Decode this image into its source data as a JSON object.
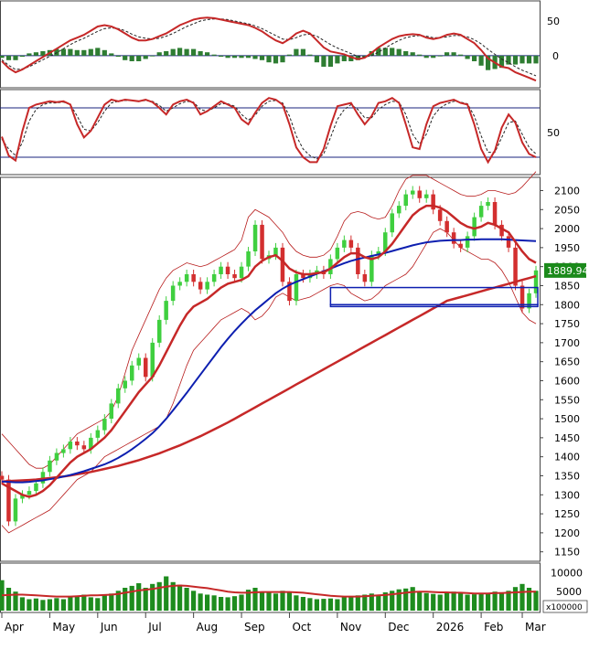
{
  "chart_data": [
    {
      "panel": "macd",
      "type": "line",
      "y_ticks": [
        "50",
        "0"
      ],
      "ylim": [
        -45,
        75
      ],
      "series": [],
      "macd": [
        -8,
        -18,
        -24,
        -20,
        -14,
        -8,
        -2,
        4,
        10,
        16,
        22,
        26,
        30,
        36,
        42,
        44,
        42,
        38,
        32,
        26,
        22,
        22,
        24,
        28,
        32,
        38,
        44,
        48,
        52,
        54,
        55,
        54,
        52,
        50,
        48,
        46,
        44,
        40,
        35,
        28,
        22,
        18,
        24,
        32,
        36,
        32,
        22,
        12,
        6,
        4,
        2,
        -2,
        -5,
        -3,
        4,
        12,
        18,
        24,
        28,
        30,
        31,
        30,
        26,
        24,
        26,
        30,
        32,
        30,
        24,
        18,
        8,
        -4,
        -10,
        -16,
        -18,
        -24,
        -28,
        -32,
        -36
      ],
      "signal": [
        -6,
        -14,
        -20,
        -19,
        -16,
        -11,
        -6,
        -1,
        4,
        10,
        16,
        21,
        25,
        30,
        35,
        39,
        40,
        39,
        36,
        31,
        27,
        25,
        24,
        25,
        28,
        32,
        37,
        42,
        46,
        50,
        52,
        53,
        53,
        52,
        50,
        48,
        46,
        43,
        39,
        34,
        29,
        24,
        23,
        26,
        30,
        31,
        28,
        22,
        16,
        11,
        7,
        3,
        -1,
        -2,
        0,
        5,
        11,
        17,
        22,
        26,
        28,
        29,
        28,
        26,
        26,
        27,
        29,
        29,
        27,
        23,
        17,
        9,
        2,
        -5,
        -10,
        -16,
        -21,
        -25,
        -29
      ]
    },
    {
      "panel": "stochastic",
      "type": "line",
      "y_ticks": [
        "50"
      ],
      "ylim": [
        0,
        100
      ],
      "upper_line": 80,
      "lower_line": 20,
      "k": [
        45,
        22,
        16,
        52,
        80,
        84,
        86,
        88,
        87,
        88,
        84,
        60,
        44,
        52,
        68,
        84,
        90,
        88,
        90,
        89,
        88,
        90,
        87,
        80,
        72,
        84,
        88,
        90,
        86,
        72,
        76,
        82,
        88,
        84,
        80,
        66,
        60,
        74,
        86,
        92,
        90,
        84,
        60,
        32,
        20,
        14,
        14,
        30,
        58,
        82,
        84,
        86,
        72,
        60,
        70,
        86,
        88,
        92,
        86,
        60,
        32,
        30,
        60,
        82,
        86,
        88,
        90,
        86,
        84,
        60,
        30,
        14,
        28,
        56,
        72,
        62,
        38,
        24,
        20
      ],
      "d": [
        42,
        30,
        22,
        38,
        64,
        78,
        84,
        86,
        86,
        87,
        84,
        70,
        54,
        52,
        62,
        76,
        86,
        88,
        89,
        89,
        88,
        89,
        88,
        83,
        76,
        80,
        85,
        88,
        87,
        78,
        76,
        80,
        85,
        85,
        82,
        72,
        65,
        71,
        82,
        88,
        89,
        86,
        70,
        46,
        30,
        22,
        18,
        24,
        44,
        66,
        78,
        84,
        78,
        68,
        68,
        78,
        84,
        88,
        87,
        72,
        48,
        36,
        48,
        70,
        80,
        85,
        88,
        87,
        85,
        70,
        46,
        26,
        26,
        44,
        62,
        64,
        48,
        32,
        24
      ]
    },
    {
      "panel": "price",
      "type": "line",
      "y_ticks": [
        "2100",
        "2050",
        "2000",
        "1950",
        "1900",
        "1850",
        "1800",
        "1750",
        "1700",
        "1650",
        "1600",
        "1550",
        "1500",
        "1450",
        "1400",
        "1350",
        "1300",
        "1250",
        "1200",
        "1150"
      ],
      "ylim": [
        1130,
        2130
      ],
      "last_price": "1889.94",
      "close": [
        1340,
        1230,
        1290,
        1300,
        1310,
        1330,
        1360,
        1390,
        1410,
        1420,
        1440,
        1430,
        1420,
        1450,
        1470,
        1500,
        1540,
        1580,
        1600,
        1640,
        1660,
        1610,
        1700,
        1760,
        1810,
        1850,
        1860,
        1880,
        1860,
        1840,
        1860,
        1880,
        1900,
        1880,
        1870,
        1900,
        1940,
        2010,
        1920,
        1930,
        1950,
        1860,
        1810,
        1880,
        1870,
        1880,
        1890,
        1880,
        1920,
        1950,
        1970,
        1950,
        1880,
        1860,
        1930,
        1940,
        1990,
        2040,
        2060,
        2090,
        2100,
        2080,
        2090,
        2050,
        2020,
        1990,
        1960,
        1950,
        1980,
        2030,
        2060,
        2070,
        2010,
        1980,
        1950,
        1850,
        1790,
        1830,
        1890
      ],
      "ma_short": [
        1330,
        1320,
        1310,
        1300,
        1295,
        1300,
        1310,
        1325,
        1345,
        1365,
        1385,
        1400,
        1410,
        1420,
        1435,
        1450,
        1470,
        1495,
        1520,
        1545,
        1570,
        1590,
        1610,
        1640,
        1675,
        1710,
        1745,
        1775,
        1795,
        1805,
        1815,
        1830,
        1845,
        1855,
        1860,
        1865,
        1875,
        1900,
        1915,
        1925,
        1930,
        1915,
        1895,
        1885,
        1880,
        1880,
        1883,
        1885,
        1895,
        1910,
        1925,
        1935,
        1935,
        1925,
        1920,
        1925,
        1940,
        1960,
        1985,
        2010,
        2035,
        2050,
        2060,
        2060,
        2055,
        2045,
        2030,
        2015,
        2005,
        2000,
        2005,
        2015,
        2010,
        2000,
        1990,
        1965,
        1940,
        1920,
        1910
      ],
      "ma_mid": [
        1335,
        1334,
        1333,
        1333,
        1334,
        1336,
        1338,
        1341,
        1344,
        1348,
        1352,
        1357,
        1362,
        1368,
        1374,
        1380,
        1388,
        1397,
        1408,
        1420,
        1433,
        1447,
        1462,
        1480,
        1500,
        1522,
        1545,
        1568,
        1592,
        1616,
        1640,
        1664,
        1688,
        1710,
        1731,
        1750,
        1768,
        1785,
        1800,
        1815,
        1830,
        1842,
        1852,
        1860,
        1867,
        1874,
        1881,
        1888,
        1895,
        1902,
        1909,
        1915,
        1920,
        1924,
        1928,
        1932,
        1936,
        1941,
        1946,
        1951,
        1956,
        1960,
        1964,
        1966,
        1968,
        1969,
        1970,
        1970,
        1971,
        1971,
        1972,
        1972,
        1972,
        1972,
        1971,
        1970,
        1969,
        1968,
        1967
      ],
      "ma_long": [
        1335,
        1336,
        1337,
        1338,
        1339,
        1340,
        1342,
        1344,
        1346,
        1348,
        1351,
        1354,
        1357,
        1360,
        1364,
        1368,
        1372,
        1376,
        1381,
        1386,
        1391,
        1397,
        1403,
        1409,
        1416,
        1423,
        1430,
        1438,
        1446,
        1454,
        1463,
        1472,
        1481,
        1490,
        1500,
        1510,
        1520,
        1530,
        1540,
        1550,
        1560,
        1570,
        1580,
        1590,
        1600,
        1610,
        1620,
        1630,
        1640,
        1650,
        1660,
        1670,
        1680,
        1690,
        1700,
        1710,
        1720,
        1730,
        1740,
        1750,
        1760,
        1770,
        1780,
        1790,
        1800,
        1810,
        1815,
        1820,
        1825,
        1830,
        1835,
        1840,
        1845,
        1850,
        1855,
        1860,
        1865,
        1870,
        1875
      ],
      "band_upper": [
        1460,
        1440,
        1420,
        1400,
        1380,
        1370,
        1370,
        1380,
        1400,
        1420,
        1440,
        1460,
        1470,
        1480,
        1490,
        1500,
        1520,
        1560,
        1620,
        1680,
        1720,
        1760,
        1800,
        1840,
        1870,
        1890,
        1900,
        1910,
        1905,
        1900,
        1905,
        1915,
        1925,
        1935,
        1945,
        1970,
        2030,
        2050,
        2040,
        2030,
        2010,
        1990,
        1960,
        1940,
        1930,
        1925,
        1925,
        1930,
        1945,
        1980,
        2020,
        2040,
        2045,
        2040,
        2030,
        2025,
        2030,
        2060,
        2100,
        2130,
        2140,
        2140,
        2140,
        2130,
        2120,
        2110,
        2100,
        2090,
        2085,
        2085,
        2090,
        2100,
        2100,
        2095,
        2090,
        2095,
        2110,
        2130,
        2150
      ],
      "band_lower": [
        1220,
        1200,
        1210,
        1220,
        1230,
        1240,
        1250,
        1260,
        1280,
        1300,
        1320,
        1340,
        1350,
        1360,
        1380,
        1400,
        1410,
        1420,
        1430,
        1440,
        1450,
        1460,
        1470,
        1480,
        1500,
        1540,
        1590,
        1640,
        1680,
        1700,
        1720,
        1740,
        1760,
        1770,
        1780,
        1790,
        1780,
        1760,
        1770,
        1790,
        1820,
        1830,
        1820,
        1810,
        1815,
        1820,
        1830,
        1840,
        1850,
        1855,
        1850,
        1830,
        1820,
        1810,
        1815,
        1830,
        1850,
        1860,
        1870,
        1880,
        1900,
        1930,
        1960,
        1990,
        2000,
        1990,
        1970,
        1950,
        1940,
        1930,
        1920,
        1920,
        1910,
        1890,
        1860,
        1820,
        1780,
        1760,
        1750
      ],
      "support_box_1": [
        1800,
        1845
      ],
      "support_box_2": [
        1795,
        1800
      ]
    },
    {
      "panel": "volume",
      "type": "bar",
      "y_ticks": [
        "10000",
        "5000"
      ],
      "unit": "x100000",
      "ylim": [
        0,
        12000
      ],
      "volume": [
        8000,
        6000,
        5000,
        3500,
        3000,
        3200,
        2800,
        3000,
        3300,
        3000,
        3600,
        3800,
        4200,
        3500,
        3300,
        4000,
        4500,
        5200,
        6000,
        6500,
        7200,
        6000,
        7000,
        7500,
        9000,
        7500,
        6800,
        6000,
        5200,
        4500,
        4200,
        4000,
        3600,
        3500,
        3800,
        4200,
        5500,
        6000,
        5000,
        4800,
        4500,
        5200,
        4800,
        4000,
        3600,
        3300,
        3000,
        3100,
        3200,
        3000,
        3500,
        3800,
        4000,
        4200,
        4500,
        4200,
        4800,
        5200,
        5600,
        5800,
        6200,
        5000,
        4600,
        4400,
        4200,
        4600,
        5000,
        4800,
        4200,
        4300,
        4500,
        4600,
        5000,
        4800,
        5200,
        6200,
        7000,
        6000,
        5200
      ],
      "volume_ma": [
        4000,
        4100,
        4200,
        4200,
        4100,
        4000,
        3900,
        3800,
        3700,
        3700,
        3700,
        3800,
        3900,
        4000,
        4000,
        4100,
        4200,
        4400,
        4700,
        5000,
        5300,
        5500,
        5700,
        6000,
        6300,
        6500,
        6600,
        6500,
        6300,
        6100,
        5900,
        5600,
        5300,
        5000,
        4800,
        4700,
        4700,
        4800,
        4900,
        4900,
        4900,
        4900,
        4900,
        4800,
        4700,
        4500,
        4300,
        4100,
        3900,
        3800,
        3700,
        3700,
        3700,
        3800,
        3900,
        4000,
        4100,
        4300,
        4500,
        4700,
        4900,
        5000,
        5000,
        4900,
        4800,
        4800,
        4700,
        4700,
        4600,
        4500,
        4500,
        4500,
        4600,
        4600,
        4700,
        4800,
        4900,
        5000,
        5000
      ]
    },
    {
      "panel": "x-axis",
      "type": "categories",
      "x_labels": [
        "Apr",
        "May",
        "Jun",
        "Jul",
        "Aug",
        "Sep",
        "Oct",
        "Nov",
        "Dec",
        "2026",
        "Feb",
        "Mar"
      ],
      "x_label_index": [
        0,
        7,
        14,
        21,
        28,
        35,
        42,
        49,
        56,
        63,
        70,
        76
      ]
    }
  ]
}
